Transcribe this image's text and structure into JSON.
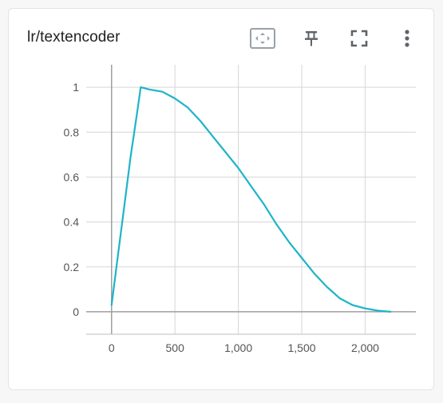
{
  "card": {
    "title": "lr/textencoder",
    "toolbar": [
      {
        "icon": "fit-to-data-icon"
      },
      {
        "icon": "pin-icon"
      },
      {
        "icon": "fullscreen-icon"
      },
      {
        "icon": "more-vert-icon"
      }
    ]
  },
  "colors": {
    "line": "#1eb4c8",
    "grid": "#d6d6d6",
    "axis": "#9e9e9e",
    "icon": "#5f6368"
  },
  "chart_data": {
    "type": "line",
    "title": "",
    "xlabel": "",
    "ylabel": "",
    "xlim": [
      -200,
      2400
    ],
    "ylim": [
      -0.1,
      1.1
    ],
    "x_ticks": [
      0,
      500,
      1000,
      1500,
      2000
    ],
    "x_tick_labels": [
      "0",
      "500",
      "1,000",
      "1,500",
      "2,000"
    ],
    "y_ticks": [
      0,
      0.2,
      0.4,
      0.6,
      0.8,
      1
    ],
    "y_tick_labels": [
      "0",
      "0.2",
      "0.4",
      "0.6",
      "0.8",
      "1"
    ],
    "grid": true,
    "series": [
      {
        "x": [
          0,
          50,
          100,
          150,
          200,
          230,
          300,
          400,
          500,
          600,
          700,
          800,
          900,
          1000,
          1100,
          1200,
          1300,
          1400,
          1500,
          1600,
          1700,
          1800,
          1900,
          2000,
          2100,
          2200
        ],
        "y": [
          0.03,
          0.25,
          0.47,
          0.69,
          0.88,
          1.0,
          0.99,
          0.98,
          0.95,
          0.91,
          0.85,
          0.78,
          0.71,
          0.64,
          0.56,
          0.48,
          0.39,
          0.31,
          0.24,
          0.17,
          0.11,
          0.06,
          0.03,
          0.015,
          0.005,
          0.0
        ]
      }
    ]
  }
}
